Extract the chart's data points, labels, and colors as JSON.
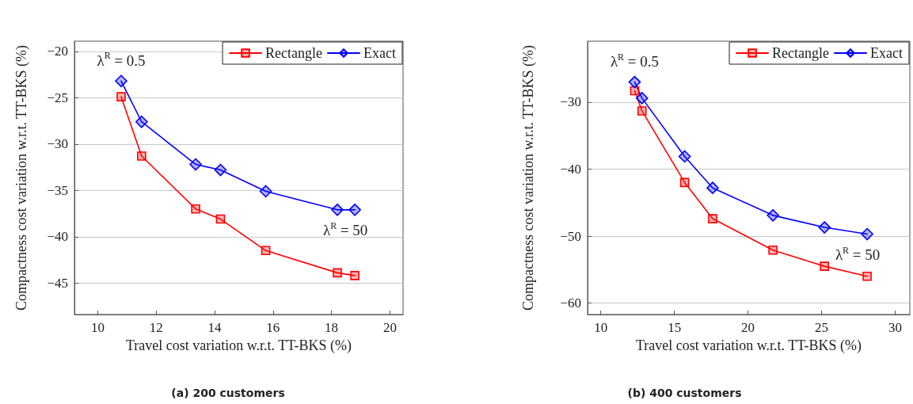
{
  "chart_data": [
    {
      "type": "line",
      "title": "(a) 200 customers",
      "xlabel": "Travel cost variation w.r.t. TT-BKS (%)",
      "ylabel": "Compactness cost variation w.r.t. TT-BKS (%)",
      "series": [
        {
          "name": "Rectangle",
          "color": "#ff0000",
          "marker": "square",
          "x": [
            10.8,
            11.5,
            13.35,
            14.2,
            15.75,
            18.2,
            18.8
          ],
          "values": [
            -24.9,
            -31.3,
            -37.0,
            -38.1,
            -41.5,
            -43.9,
            -44.2
          ]
        },
        {
          "name": "Exact",
          "color": "#0000ff",
          "marker": "diamond",
          "x": [
            10.8,
            11.5,
            13.35,
            14.2,
            15.75,
            18.2,
            18.8
          ],
          "values": [
            -23.2,
            -27.6,
            -32.2,
            -32.8,
            -35.1,
            -37.1,
            -37.1
          ]
        }
      ],
      "annotations": [
        {
          "text": "λ$^{R}$ = 0.5",
          "x": 10.8,
          "y": -23.2
        },
        {
          "text": "λ$^{R}$ = 50",
          "x": 18.8,
          "y": -37.1
        }
      ],
      "xlim": [
        9.2,
        20.45
      ],
      "xticks": [
        10,
        12,
        14,
        16,
        18,
        20
      ],
      "ylim": [
        -48.4,
        -18.9
      ],
      "yticks": [
        -45,
        -40,
        -35,
        -30,
        -25,
        -20
      ],
      "grid": "y",
      "legend": "top right"
    },
    {
      "type": "line",
      "title": "(b) 400 customers",
      "xlabel": "Travel cost variation w.r.t. TT-BKS (%)",
      "ylabel": "Compactness cost variation w.r.t. TT-BKS (%)",
      "series": [
        {
          "name": "Rectangle",
          "color": "#ff0000",
          "marker": "square",
          "x": [
            12.3,
            12.8,
            15.7,
            17.6,
            21.7,
            25.2,
            28.1
          ],
          "values": [
            -28.3,
            -31.3,
            -42.0,
            -47.4,
            -52.1,
            -54.5,
            -56.0
          ]
        },
        {
          "name": "Exact",
          "color": "#0000ff",
          "marker": "diamond",
          "x": [
            12.3,
            12.8,
            15.7,
            17.6,
            21.7,
            25.2,
            28.1
          ],
          "values": [
            -27.0,
            -29.4,
            -38.1,
            -42.8,
            -46.9,
            -48.7,
            -49.7
          ]
        }
      ],
      "annotations": [
        {
          "text": "λ$^{R}$ = 0.5",
          "x": 12.3,
          "y": -27.0
        },
        {
          "text": "λ$^{R}$ = 50",
          "x": 28.1,
          "y": -49.7
        }
      ],
      "xlim": [
        9.1,
        31.0
      ],
      "xticks": [
        10,
        15,
        20,
        25,
        30
      ],
      "ylim": [
        -61.7,
        -20.9
      ],
      "yticks": [
        -60,
        -50,
        -40,
        -30
      ],
      "grid": "y",
      "legend": "top right"
    }
  ]
}
